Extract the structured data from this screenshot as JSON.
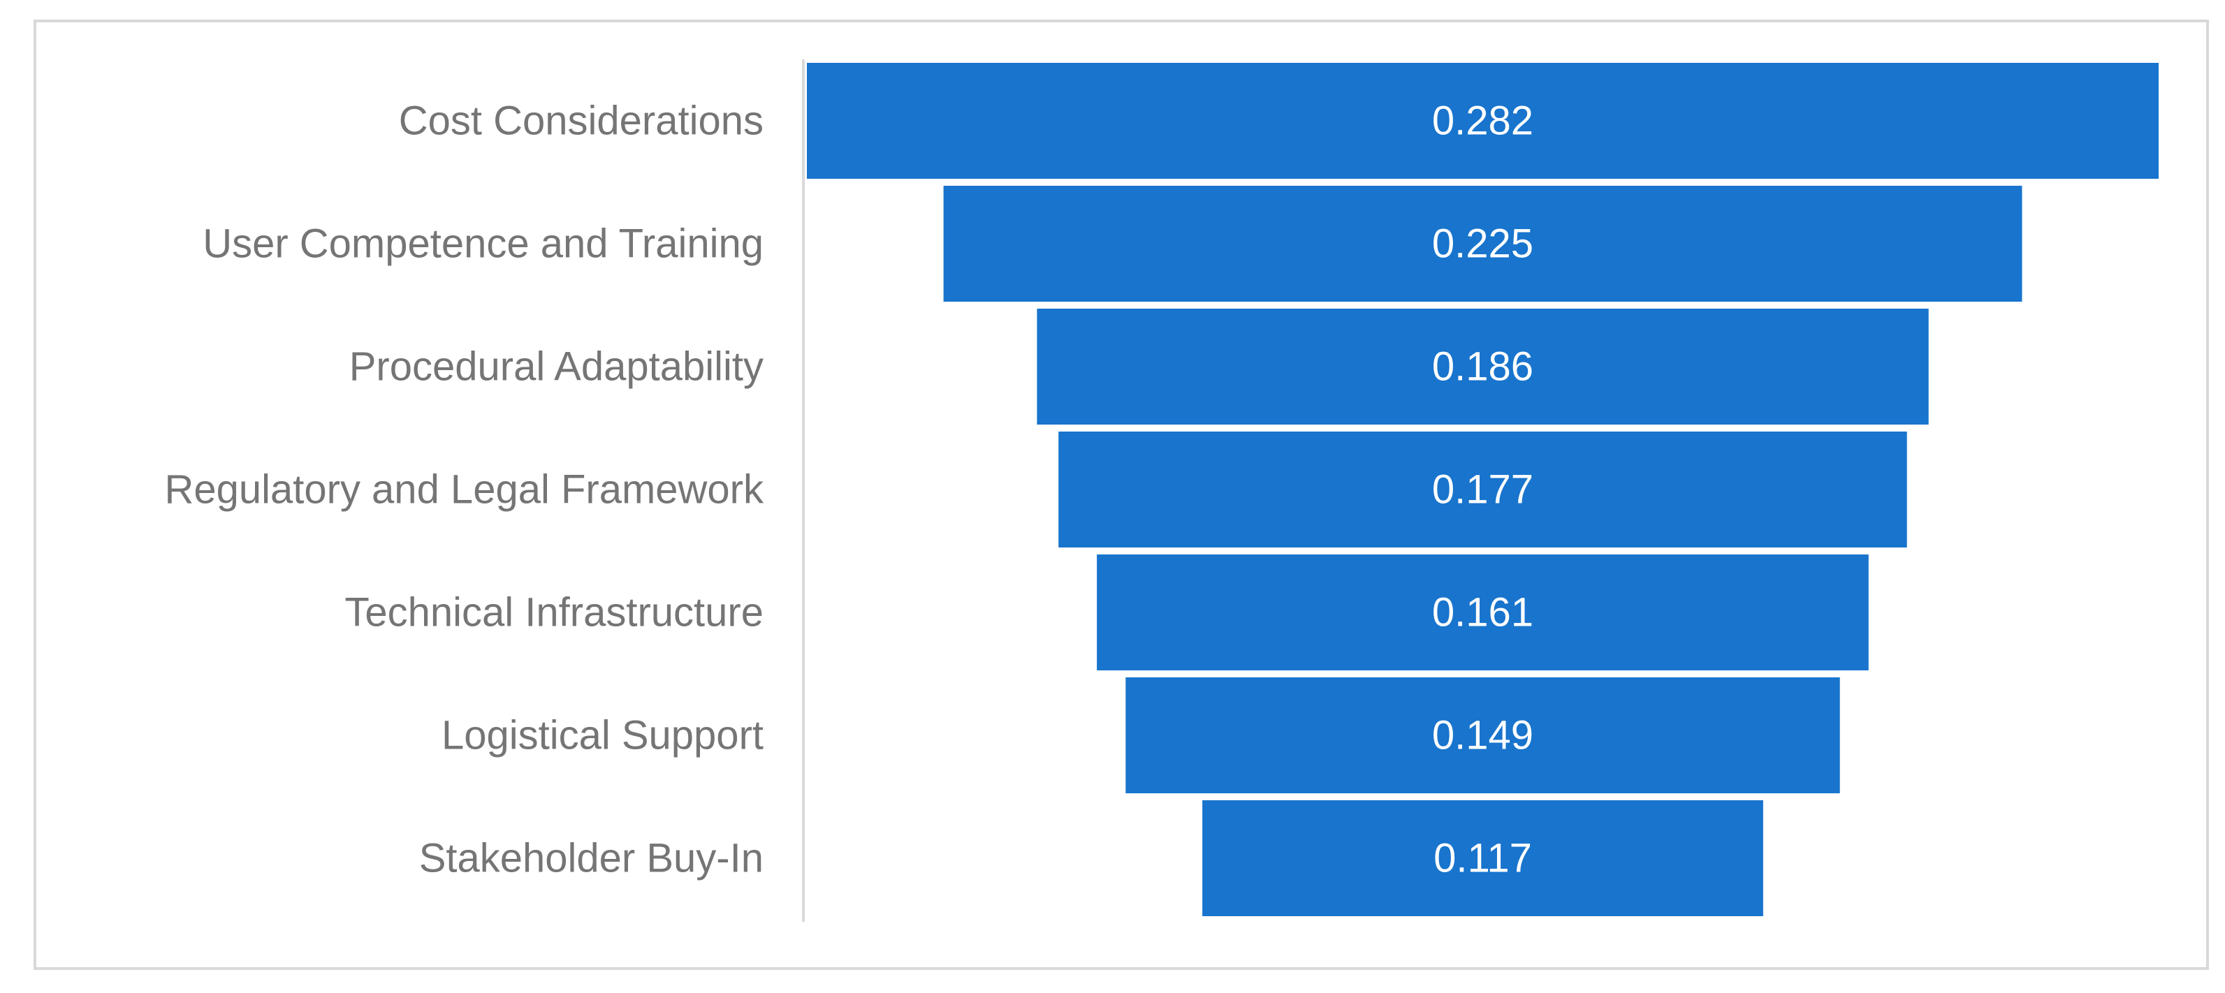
{
  "chart_data": {
    "type": "bar",
    "subtype": "funnel",
    "orientation": "horizontal",
    "title": "",
    "xlabel": "",
    "ylabel": "",
    "categories": [
      "Cost Considerations",
      "User Competence and Training",
      "Procedural Adaptability",
      "Regulatory and Legal Framework",
      "Technical Infrastructure",
      "Logistical Support",
      "Stakeholder Buy-In"
    ],
    "values": [
      0.282,
      0.225,
      0.186,
      0.177,
      0.161,
      0.149,
      0.117
    ],
    "value_labels": [
      "0.282",
      "0.225",
      "0.186",
      "0.177",
      "0.161",
      "0.149",
      "0.117"
    ],
    "xlim": [
      0,
      0.282
    ],
    "grid": false,
    "legend": "none",
    "colors": {
      "bar": "#1874CD",
      "bar_label": "#FFFFFF",
      "category_label": "#757575",
      "axis_line": "#D9D9D9",
      "frame": "#D9D9D9"
    }
  }
}
